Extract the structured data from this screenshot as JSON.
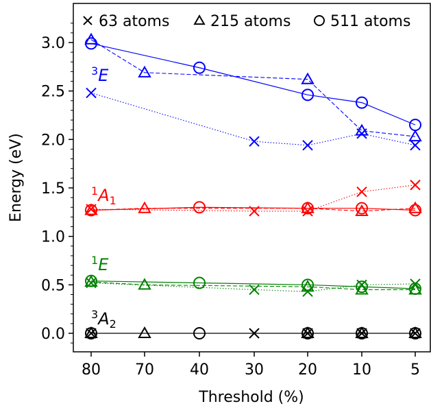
{
  "chart_data": {
    "type": "line",
    "xlabel": "Threshold (%)",
    "ylabel": "Energy (eV)",
    "categories": [
      "80",
      "70",
      "40",
      "30",
      "20",
      "10",
      "5"
    ],
    "ylim": [
      -0.2,
      3.35
    ],
    "yticks": [
      "0.0",
      "0.5",
      "1.0",
      "1.5",
      "2.0",
      "2.5",
      "3.0"
    ],
    "legend": {
      "placement": "top",
      "entries": [
        {
          "marker": "cross",
          "label": "63 atoms"
        },
        {
          "marker": "triangle",
          "label": "215 atoms"
        },
        {
          "marker": "circle",
          "label": "511 atoms"
        }
      ]
    },
    "states": [
      {
        "color": "#0000ff",
        "label_sup": "3",
        "label_main": "E",
        "label_sub": "",
        "series": [
          {
            "marker": "cross",
            "style": "dotted",
            "points": [
              [
                0,
                2.48
              ],
              [
                3,
                1.98
              ],
              [
                4,
                1.94
              ],
              [
                5,
                2.06
              ],
              [
                6,
                1.94
              ]
            ]
          },
          {
            "marker": "triangle",
            "style": "dashed",
            "points": [
              [
                0,
                3.03
              ],
              [
                1,
                2.69
              ],
              [
                4,
                2.62
              ],
              [
                5,
                2.09
              ],
              [
                6,
                2.03
              ]
            ]
          },
          {
            "marker": "circle",
            "style": "solid",
            "points": [
              [
                0,
                2.99
              ],
              [
                2,
                2.74
              ],
              [
                4,
                2.46
              ],
              [
                5,
                2.38
              ],
              [
                6,
                2.15
              ]
            ]
          }
        ]
      },
      {
        "color": "#ff0000",
        "label_sup": "1",
        "label_main": "A",
        "label_sub": "1",
        "series": [
          {
            "marker": "cross",
            "style": "dotted",
            "points": [
              [
                0,
                1.28
              ],
              [
                3,
                1.26
              ],
              [
                4,
                1.26
              ],
              [
                5,
                1.46
              ],
              [
                6,
                1.53
              ]
            ]
          },
          {
            "marker": "triangle",
            "style": "dashed",
            "points": [
              [
                0,
                1.27
              ],
              [
                1,
                1.29
              ],
              [
                4,
                1.29
              ],
              [
                5,
                1.26
              ],
              [
                6,
                1.29
              ]
            ]
          },
          {
            "marker": "circle",
            "style": "solid",
            "points": [
              [
                0,
                1.27
              ],
              [
                2,
                1.3
              ],
              [
                4,
                1.29
              ],
              [
                5,
                1.29
              ],
              [
                6,
                1.27
              ]
            ]
          }
        ]
      },
      {
        "color": "#008000",
        "label_sup": "1",
        "label_main": "E",
        "label_sub": "",
        "series": [
          {
            "marker": "cross",
            "style": "dotted",
            "points": [
              [
                0,
                0.52
              ],
              [
                3,
                0.45
              ],
              [
                4,
                0.43
              ],
              [
                5,
                0.5
              ],
              [
                6,
                0.51
              ]
            ]
          },
          {
            "marker": "triangle",
            "style": "dashed",
            "points": [
              [
                0,
                0.53
              ],
              [
                1,
                0.5
              ],
              [
                4,
                0.48
              ],
              [
                5,
                0.45
              ],
              [
                6,
                0.45
              ]
            ]
          },
          {
            "marker": "circle",
            "style": "solid",
            "points": [
              [
                0,
                0.54
              ],
              [
                2,
                0.52
              ],
              [
                4,
                0.5
              ],
              [
                5,
                0.48
              ],
              [
                6,
                0.46
              ]
            ]
          }
        ]
      },
      {
        "color": "#000000",
        "label_sup": "3",
        "label_main": "A",
        "label_sub": "2",
        "series": [
          {
            "marker": "cross",
            "style": "dotted",
            "points": [
              [
                0,
                0.0
              ],
              [
                3,
                0.0
              ],
              [
                4,
                0.0
              ],
              [
                5,
                0.0
              ],
              [
                6,
                0.0
              ]
            ]
          },
          {
            "marker": "triangle",
            "style": "dashed",
            "points": [
              [
                0,
                0.0
              ],
              [
                1,
                0.0
              ],
              [
                4,
                0.0
              ],
              [
                5,
                0.0
              ],
              [
                6,
                0.0
              ]
            ]
          },
          {
            "marker": "circle",
            "style": "solid",
            "points": [
              [
                0,
                0.0
              ],
              [
                2,
                0.0
              ],
              [
                4,
                0.0
              ],
              [
                5,
                0.0
              ],
              [
                6,
                0.0
              ]
            ]
          }
        ]
      }
    ]
  }
}
